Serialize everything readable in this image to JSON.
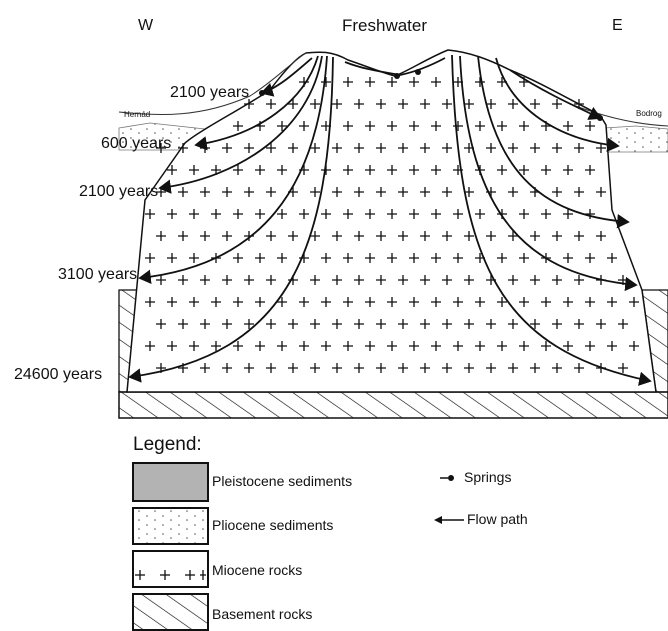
{
  "header": {
    "west_label": "W",
    "title": "Freshwater",
    "east_label": "E"
  },
  "rivers": {
    "left": "Hernád",
    "right": "Bodrog"
  },
  "age_labels": [
    "2100 years",
    "600 years",
    "2100 years",
    "3100 years",
    "24600 years"
  ],
  "legend": {
    "title": "Legend:",
    "units": [
      {
        "label": "Pleistocene sediments"
      },
      {
        "label": "Pliocene sediments"
      },
      {
        "label": "Miocene rocks"
      },
      {
        "label": "Basement rocks"
      }
    ],
    "symbols": [
      {
        "label": "Springs",
        "icon": "spring-icon"
      },
      {
        "label": "Flow path",
        "icon": "flow-arrow-icon"
      }
    ]
  },
  "colors": {
    "pleistocene_fill": "#b3b3b3",
    "ink": "#111111"
  }
}
